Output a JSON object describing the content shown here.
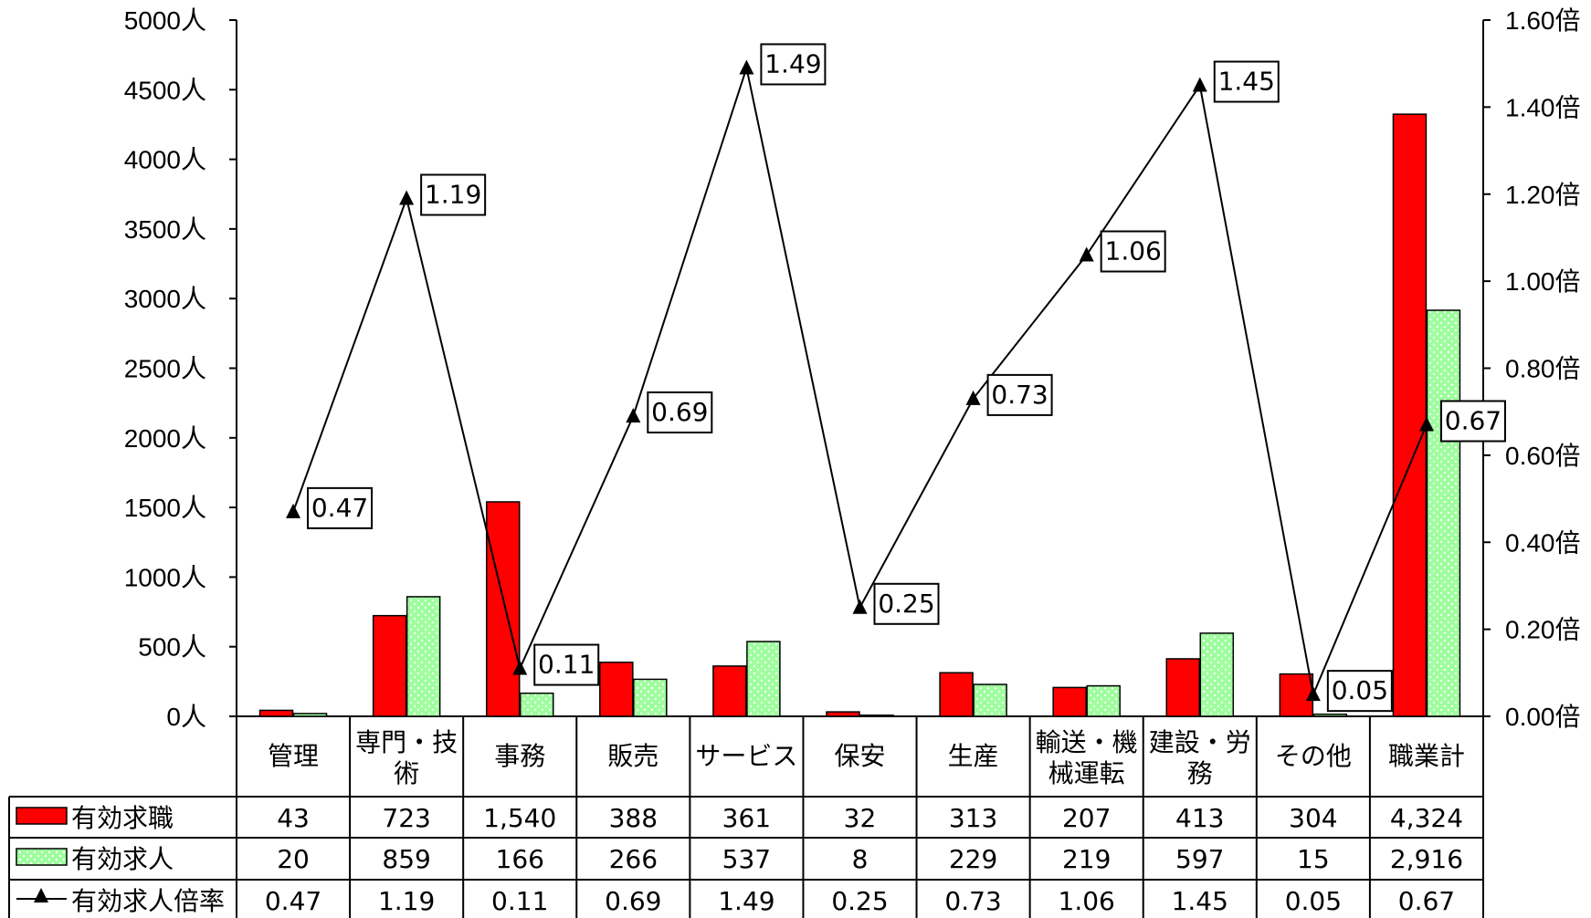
{
  "chart_data": {
    "type": "bar",
    "categories": [
      [
        "管理"
      ],
      [
        "専門・技",
        "術"
      ],
      [
        "事務"
      ],
      [
        "販売"
      ],
      [
        "サービス"
      ],
      [
        "保安"
      ],
      [
        "生産"
      ],
      [
        "輸送・機",
        "械運転"
      ],
      [
        "建設・労",
        "務"
      ],
      [
        "その他"
      ],
      [
        "職業計"
      ]
    ],
    "series": [
      {
        "name": "有効求職",
        "type": "bar",
        "axis": "left",
        "values": [
          43,
          723,
          1540,
          388,
          361,
          32,
          313,
          207,
          413,
          304,
          4324
        ],
        "table_values": [
          "43",
          "723",
          "1,540",
          "388",
          "361",
          "32",
          "313",
          "207",
          "413",
          "304",
          "4,324"
        ],
        "color": "#ff0000"
      },
      {
        "name": "有効求人",
        "type": "bar",
        "axis": "left",
        "values": [
          20,
          859,
          166,
          266,
          537,
          8,
          229,
          219,
          597,
          15,
          2916
        ],
        "table_values": [
          "20",
          "859",
          "166",
          "266",
          "537",
          "8",
          "229",
          "219",
          "597",
          "15",
          "2,916"
        ],
        "color": "#99ff99",
        "pattern": "dots"
      },
      {
        "name": "有効求人倍率",
        "type": "line",
        "axis": "right",
        "values": [
          0.47,
          1.19,
          0.11,
          0.69,
          1.49,
          0.25,
          0.73,
          1.06,
          1.45,
          0.05,
          0.67
        ],
        "table_values": [
          "0.47",
          "1.19",
          "0.11",
          "0.69",
          "1.49",
          "0.25",
          "0.73",
          "1.06",
          "1.45",
          "0.05",
          "0.67"
        ],
        "labels": [
          "0.47",
          "1.19",
          "0.11",
          "0.69",
          "1.49",
          "0.25",
          "0.73",
          "1.06",
          "1.45",
          "0.05",
          "0.67"
        ],
        "color": "#000000",
        "marker": "triangle"
      }
    ],
    "y_left": {
      "ticks": [
        0,
        500,
        1000,
        1500,
        2000,
        2500,
        3000,
        3500,
        4000,
        4500,
        5000
      ],
      "tick_labels": [
        "0人",
        "500人",
        "1000人",
        "1500人",
        "2000人",
        "2500人",
        "3000人",
        "3500人",
        "4000人",
        "4500人",
        "5000人"
      ],
      "range": [
        0,
        5000
      ]
    },
    "y_right": {
      "ticks": [
        0,
        0.2,
        0.4,
        0.6,
        0.8,
        1.0,
        1.2,
        1.4,
        1.6
      ],
      "tick_labels": [
        "0.00倍",
        "0.20倍",
        "0.40倍",
        "0.60倍",
        "0.80倍",
        "1.00倍",
        "1.20倍",
        "1.40倍",
        "1.60倍"
      ],
      "range": [
        0,
        1.6
      ]
    },
    "grid": false,
    "legend": "table"
  }
}
